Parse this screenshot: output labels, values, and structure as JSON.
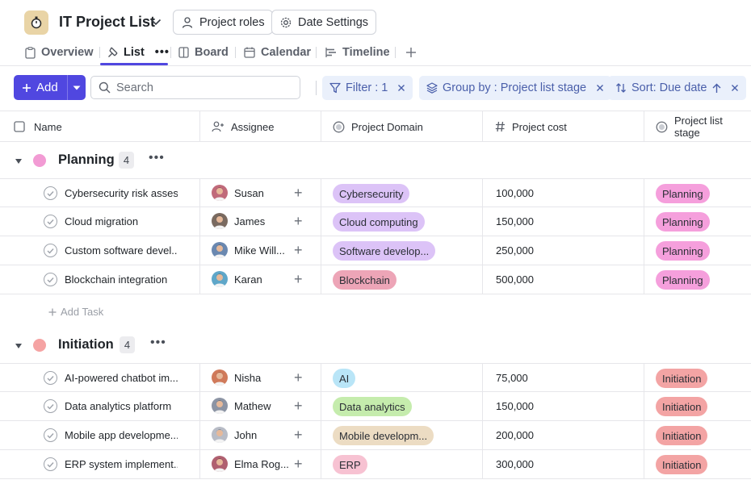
{
  "header": {
    "title": "IT Project List",
    "project_roles": "Project roles",
    "date_settings": "Date Settings"
  },
  "tabs": [
    {
      "label": "Overview",
      "icon": "clipboard-icon"
    },
    {
      "label": "List",
      "icon": "pin-icon",
      "active": true
    },
    {
      "label": "Board",
      "icon": "board-icon"
    },
    {
      "label": "Calendar",
      "icon": "calendar-icon"
    },
    {
      "label": "Timeline",
      "icon": "timeline-icon"
    }
  ],
  "toolbar": {
    "add_label": "Add",
    "search_placeholder": "Search",
    "filter_label": "Filter : 1",
    "group_label": "Group by : Project list stage",
    "sort_label": "Sort: Due date"
  },
  "columns": {
    "name": "Name",
    "assignee": "Assignee",
    "domain": "Project Domain",
    "cost": "Project cost",
    "stage": "Project list stage"
  },
  "groups": [
    {
      "name": "Planning",
      "count": "4",
      "color": "#f29bd4",
      "rows": [
        {
          "task": "Cybersecurity risk asses...",
          "assignee": "Susan",
          "domain": "Cybersecurity",
          "domain_color": "#dcc3f7",
          "cost": "100,000",
          "stage": "Planning",
          "stage_color": "#f59fdc"
        },
        {
          "task": "Cloud migration",
          "assignee": "James",
          "domain": "Cloud computing",
          "domain_color": "#dcc3f7",
          "cost": "150,000",
          "stage": "Planning",
          "stage_color": "#f59fdc"
        },
        {
          "task": "Custom software devel...",
          "assignee": "Mike Will...",
          "domain": "Software develop...",
          "domain_color": "#dcc3f7",
          "cost": "250,000",
          "stage": "Planning",
          "stage_color": "#f59fdc"
        },
        {
          "task": "Blockchain integration",
          "assignee": "Karan",
          "domain": "Blockchain",
          "domain_color": "#eda5b7",
          "cost": "500,000",
          "stage": "Planning",
          "stage_color": "#f59fdc"
        }
      ],
      "add_task": "Add Task"
    },
    {
      "name": "Initiation",
      "count": "4",
      "color": "#f5a3a3",
      "rows": [
        {
          "task": "AI-powered chatbot im...",
          "assignee": "Nisha",
          "domain": "AI",
          "domain_color": "#b9e5f7",
          "cost": "75,000",
          "stage": "Initiation",
          "stage_color": "#f3a4a4"
        },
        {
          "task": "Data analytics platform",
          "assignee": "Mathew",
          "domain": "Data analytics",
          "domain_color": "#c5ecad",
          "cost": "150,000",
          "stage": "Initiation",
          "stage_color": "#f3a4a4"
        },
        {
          "task": "Mobile app developme...",
          "assignee": "John",
          "domain": "Mobile developm...",
          "domain_color": "#ecdcc3",
          "cost": "200,000",
          "stage": "Initiation",
          "stage_color": "#f3a4a4"
        },
        {
          "task": "ERP system implement...",
          "assignee": "Elma Rog...",
          "domain": "ERP",
          "domain_color": "#f7c2d2",
          "cost": "300,000",
          "stage": "Initiation",
          "stage_color": "#f3a4a4"
        }
      ]
    }
  ]
}
